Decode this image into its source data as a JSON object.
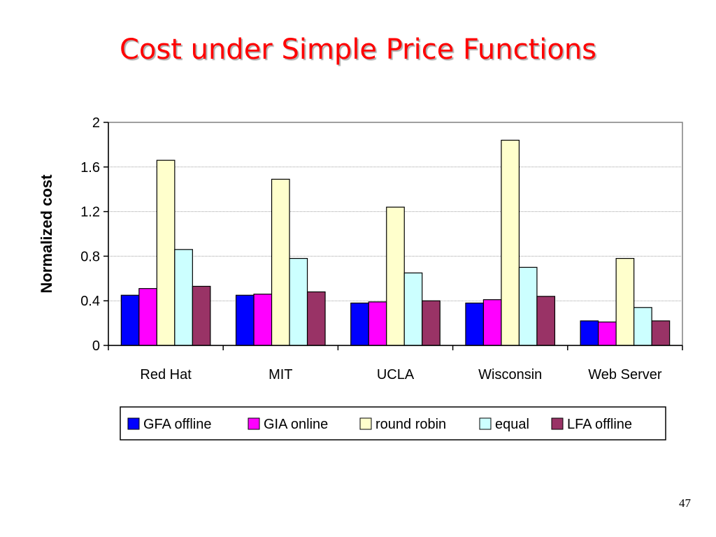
{
  "slide": {
    "title": "Cost under Simple Price Functions",
    "page_number": "47"
  },
  "chart_data": {
    "type": "bar",
    "title": "",
    "xlabel": "",
    "ylabel": "Normalized cost",
    "ylim": [
      0,
      2
    ],
    "yticks": [
      "0",
      "0.4",
      "0.8",
      "1.2",
      "1.6",
      "2"
    ],
    "grid": true,
    "legend_position": "bottom",
    "categories": [
      "Red Hat",
      "MIT",
      "UCLA",
      "Wisconsin",
      "Web Server"
    ],
    "series": [
      {
        "name": "GFA offline",
        "color": "#0000ff",
        "values": [
          0.45,
          0.45,
          0.38,
          0.38,
          0.22
        ]
      },
      {
        "name": "GIA online",
        "color": "#ff00ff",
        "values": [
          0.51,
          0.46,
          0.39,
          0.41,
          0.21
        ]
      },
      {
        "name": "round robin",
        "color": "#ffffcc",
        "values": [
          1.66,
          1.49,
          1.24,
          1.84,
          0.78
        ]
      },
      {
        "name": "equal",
        "color": "#ccffff",
        "values": [
          0.86,
          0.78,
          0.65,
          0.7,
          0.34
        ]
      },
      {
        "name": "LFA offline",
        "color": "#993366",
        "values": [
          0.53,
          0.48,
          0.4,
          0.44,
          0.22
        ]
      }
    ]
  }
}
